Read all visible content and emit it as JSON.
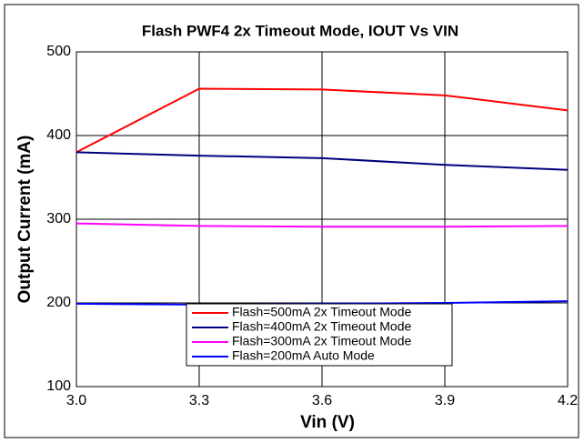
{
  "chart_data": {
    "type": "line",
    "title": "Flash PWF4 2x Timeout Mode, IOUT Vs VIN",
    "x_label": "Vin (V)",
    "y_label": "Output Current (mA)",
    "x": [
      3.0,
      3.3,
      3.6,
      3.9,
      4.2
    ],
    "series": [
      {
        "name": "Flash=500mA 2x Timeout Mode",
        "color": "#ff0000",
        "values": [
          380,
          456,
          455,
          448,
          430
        ]
      },
      {
        "name": "Flash=400mA 2x Timeout Mode",
        "color": "#000080",
        "values": [
          380,
          376,
          373,
          365,
          359
        ]
      },
      {
        "name": "Flash=300mA 2x Timeout Mode",
        "color": "#ff00ff",
        "values": [
          295,
          292,
          291,
          291,
          292
        ]
      },
      {
        "name": "Flash=200mA Auto Mode",
        "color": "#0000ff",
        "values": [
          199,
          198,
          199,
          200,
          202
        ]
      }
    ],
    "xlim": [
      3.0,
      4.2
    ],
    "xticks": [
      {
        "value": 3,
        "label": "3.0"
      },
      3.3,
      3.6,
      3.9,
      4.2
    ],
    "ylim": [
      100,
      500
    ],
    "yticks": [
      100,
      200,
      300,
      400,
      500
    ],
    "grid": true,
    "legend": "bottom-center"
  }
}
